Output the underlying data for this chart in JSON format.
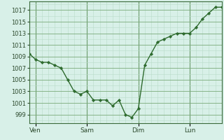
{
  "x_values": [
    0,
    3,
    6,
    9,
    12,
    15,
    18,
    21,
    24,
    27,
    30,
    33,
    36,
    39,
    42,
    45,
    48,
    51,
    54,
    57,
    60,
    63,
    66,
    69,
    72,
    75,
    78,
    81,
    84,
    87,
    90
  ],
  "y_values": [
    1009.5,
    1008.5,
    1008.0,
    1008.0,
    1007.5,
    1007.0,
    1005.0,
    1003.0,
    1002.5,
    1003.0,
    1001.5,
    1001.5,
    1001.5,
    1000.5,
    1001.5,
    999.0,
    998.5,
    1000.0,
    1007.5,
    1009.5,
    1011.5,
    1012.0,
    1012.5,
    1013.0,
    1013.0,
    1013.0,
    1014.0,
    1015.5,
    1016.5,
    1017.5,
    1017.5
  ],
  "x_tick_positions": [
    3,
    27,
    51,
    75
  ],
  "x_tick_labels": [
    "Ven",
    "Sam",
    "Dim",
    "Lun"
  ],
  "y_ticks": [
    999,
    1001,
    1003,
    1005,
    1007,
    1009,
    1011,
    1013,
    1015,
    1017
  ],
  "ylim": [
    997.5,
    1018.5
  ],
  "xlim": [
    0,
    90
  ],
  "line_color": "#2d6a2d",
  "marker_color": "#2d6a2d",
  "bg_color": "#d8f0e8",
  "grid_color_major": "#7aaa7a",
  "grid_color_minor": "#b8dcc8",
  "vline_color": "#3a6a3a",
  "tick_color": "#2d4a2d"
}
